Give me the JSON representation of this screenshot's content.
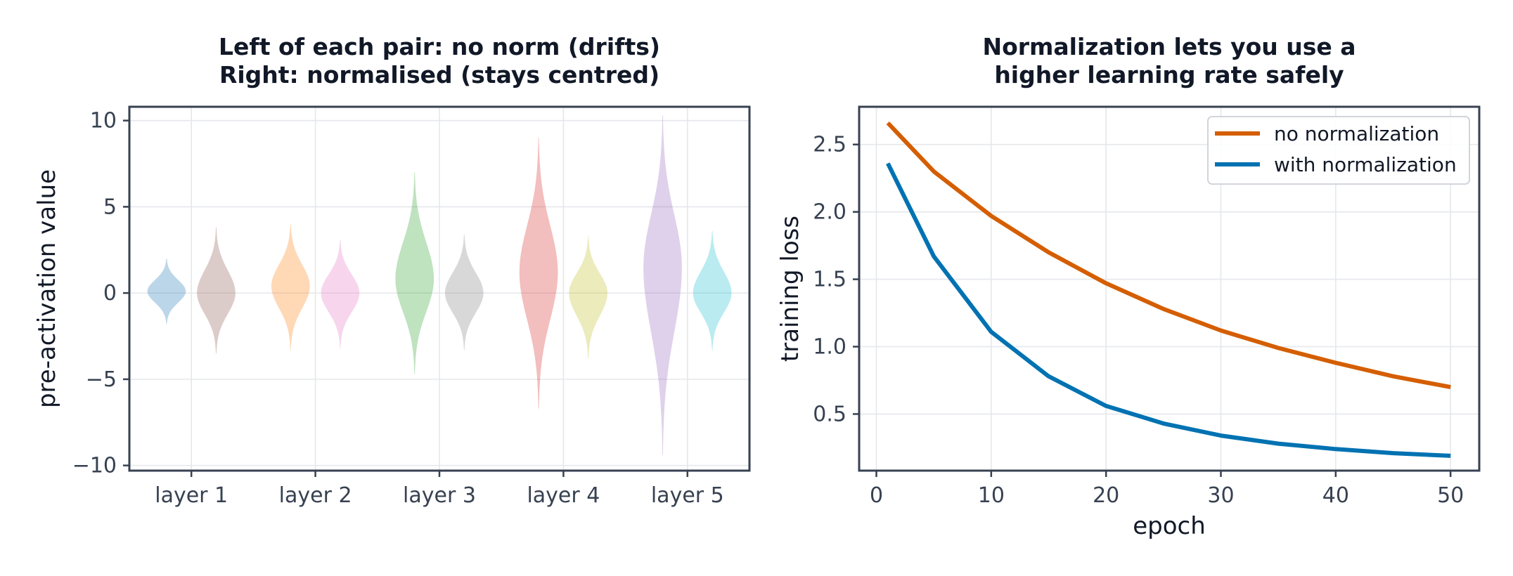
{
  "chart_data": [
    {
      "type": "violin",
      "title_lines": [
        "Left of each pair: no norm (drifts)",
        "Right: normalised (stays centred)"
      ],
      "xlabel": "",
      "ylabel": "pre-activation value",
      "categories": [
        "layer 1",
        "layer 2",
        "layer 3",
        "layer 4",
        "layer 5"
      ],
      "ylim": [
        -10.3,
        10.8
      ],
      "yticks": [
        -10,
        -5,
        0,
        5,
        10
      ],
      "ytick_labels": [
        "−10",
        "−5",
        "0",
        "5",
        "10"
      ],
      "grid": true,
      "violins": [
        {
          "layer": 1,
          "group": "no norm",
          "center": 0.1,
          "min": -1.8,
          "max": 2.0,
          "color": "#1f77b4"
        },
        {
          "layer": 1,
          "group": "normalised",
          "center": 0.0,
          "min": -3.5,
          "max": 3.8,
          "color": "#8c564b"
        },
        {
          "layer": 2,
          "group": "no norm",
          "center": 0.4,
          "min": -3.3,
          "max": 4.0,
          "color": "#ff7f0e"
        },
        {
          "layer": 2,
          "group": "normalised",
          "center": 0.0,
          "min": -3.2,
          "max": 3.1,
          "color": "#e377c2"
        },
        {
          "layer": 3,
          "group": "no norm",
          "center": 0.8,
          "min": -4.7,
          "max": 7.0,
          "color": "#2ca02c"
        },
        {
          "layer": 3,
          "group": "normalised",
          "center": 0.0,
          "min": -3.3,
          "max": 3.4,
          "color": "#7f7f7f"
        },
        {
          "layer": 4,
          "group": "no norm",
          "center": 1.2,
          "min": -6.7,
          "max": 9.0,
          "color": "#d62728"
        },
        {
          "layer": 4,
          "group": "normalised",
          "center": 0.0,
          "min": -3.8,
          "max": 3.3,
          "color": "#bcbd22"
        },
        {
          "layer": 5,
          "group": "no norm",
          "center": 1.5,
          "min": -9.4,
          "max": 10.3,
          "color": "#9467bd"
        },
        {
          "layer": 5,
          "group": "normalised",
          "center": 0.0,
          "min": -3.3,
          "max": 3.6,
          "color": "#17becf"
        }
      ]
    },
    {
      "type": "line",
      "title_lines": [
        "Normalization lets you use a",
        "higher learning rate safely"
      ],
      "xlabel": "epoch",
      "ylabel": "training loss",
      "xlim": [
        -1.5,
        52.5
      ],
      "ylim": [
        0.08,
        2.78
      ],
      "xticks": [
        0,
        10,
        20,
        30,
        40,
        50
      ],
      "yticks": [
        0.5,
        1.0,
        1.5,
        2.0,
        2.5
      ],
      "ytick_labels": [
        "0.5",
        "1.0",
        "1.5",
        "2.0",
        "2.5"
      ],
      "grid": true,
      "legend_position": "top-right",
      "series": [
        {
          "name": "no normalization",
          "color": "#d45e00",
          "x": [
            1,
            5,
            10,
            15,
            20,
            25,
            30,
            35,
            40,
            45,
            50
          ],
          "y": [
            2.66,
            2.3,
            1.97,
            1.7,
            1.47,
            1.28,
            1.12,
            0.99,
            0.88,
            0.78,
            0.7
          ]
        },
        {
          "name": "with normalization",
          "color": "#0072b2",
          "x": [
            1,
            5,
            10,
            15,
            20,
            25,
            30,
            35,
            40,
            45,
            50
          ],
          "y": [
            2.36,
            1.67,
            1.11,
            0.78,
            0.56,
            0.43,
            0.34,
            0.28,
            0.24,
            0.21,
            0.19
          ]
        }
      ]
    }
  ]
}
